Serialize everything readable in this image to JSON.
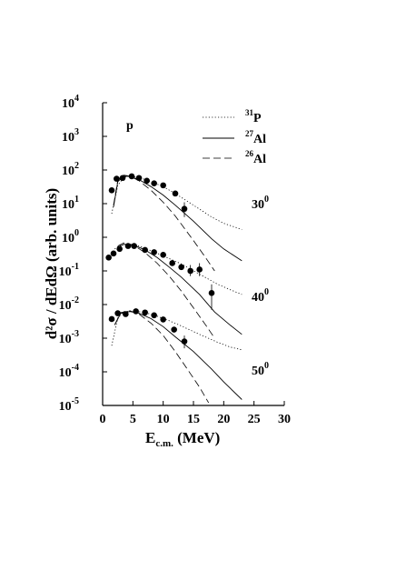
{
  "chart_data": {
    "type": "scatter",
    "panel_label": "p",
    "x_axis": {
      "label_main": "E",
      "label_sub": "c.m.",
      "label_unit": " (MeV)",
      "min": 0,
      "max": 30,
      "ticks": [
        "0",
        "5",
        "10",
        "15",
        "20",
        "25",
        "30"
      ]
    },
    "y_axis": {
      "label": "d²σ / dEdΩ  (arb. units)",
      "scale": "log",
      "min": 1e-05,
      "max": 10000.0,
      "ticks": [
        {
          "base": "10",
          "exp": "4"
        },
        {
          "base": "10",
          "exp": "3"
        },
        {
          "base": "10",
          "exp": "2"
        },
        {
          "base": "10",
          "exp": "1"
        },
        {
          "base": "10",
          "exp": "0"
        },
        {
          "base": "10",
          "exp": "-1"
        },
        {
          "base": "10",
          "exp": "-2"
        },
        {
          "base": "10",
          "exp": "-3"
        },
        {
          "base": "10",
          "exp": "-4"
        },
        {
          "base": "10",
          "exp": "-5"
        }
      ]
    },
    "legend": {
      "placement": "top-right",
      "entries": [
        {
          "mass": "31",
          "element": "P",
          "style": "dotted"
        },
        {
          "mass": "27",
          "element": "Al",
          "style": "solid"
        },
        {
          "mass": "26",
          "element": "Al",
          "style": "dashed"
        }
      ]
    },
    "angle_labels": [
      {
        "value": "30",
        "sup": "0"
      },
      {
        "value": "40",
        "sup": "0"
      },
      {
        "value": "50",
        "sup": "0"
      }
    ],
    "groups": [
      {
        "angle": "30",
        "data": [
          {
            "x": 1.5,
            "y": 25,
            "err_lo": 0,
            "err_hi": 0
          },
          {
            "x": 2.3,
            "y": 55,
            "err_lo": 0,
            "err_hi": 0
          },
          {
            "x": 3.3,
            "y": 58,
            "err_lo": 0,
            "err_hi": 0
          },
          {
            "x": 4.8,
            "y": 65,
            "err_lo": 0,
            "err_hi": 0
          },
          {
            "x": 6.0,
            "y": 58,
            "err_lo": 0,
            "err_hi": 0
          },
          {
            "x": 7.3,
            "y": 48,
            "err_lo": 0,
            "err_hi": 0
          },
          {
            "x": 8.5,
            "y": 40,
            "err_lo": 0,
            "err_hi": 0
          },
          {
            "x": 10.0,
            "y": 35,
            "err_lo": 0,
            "err_hi": 0
          },
          {
            "x": 12.0,
            "y": 20,
            "err_lo": 0,
            "err_hi": 0
          },
          {
            "x": 13.5,
            "y": 7,
            "err_lo": 3,
            "err_hi": 4
          }
        ],
        "curves": [
          {
            "style": "dotted",
            "points": [
              [
                1.5,
                5
              ],
              [
                2.5,
                35
              ],
              [
                3.5,
                60
              ],
              [
                4.5,
                66
              ],
              [
                6,
                60
              ],
              [
                8,
                45
              ],
              [
                10,
                32
              ],
              [
                12,
                20
              ],
              [
                15,
                9
              ],
              [
                18,
                4
              ],
              [
                20,
                2.6
              ],
              [
                23,
                1.7
              ]
            ]
          },
          {
            "style": "solid",
            "points": [
              [
                1.8,
                8
              ],
              [
                2.5,
                45
              ],
              [
                3.5,
                66
              ],
              [
                4.5,
                64
              ],
              [
                6,
                52
              ],
              [
                8,
                32
              ],
              [
                10,
                18
              ],
              [
                12,
                9
              ],
              [
                15,
                3
              ],
              [
                18,
                0.9
              ],
              [
                20,
                0.45
              ],
              [
                23,
                0.2
              ]
            ]
          },
          {
            "style": "dashed",
            "points": [
              [
                1.8,
                9
              ],
              [
                2.5,
                50
              ],
              [
                3.5,
                70
              ],
              [
                4.5,
                66
              ],
              [
                6,
                48
              ],
              [
                8,
                25
              ],
              [
                10,
                11
              ],
              [
                12,
                4.3
              ],
              [
                15,
                0.8
              ],
              [
                17,
                0.25
              ],
              [
                18.5,
                0.1
              ]
            ]
          }
        ]
      },
      {
        "angle": "40",
        "data": [
          {
            "x": 1.0,
            "y": 0.25,
            "err_lo": 0,
            "err_hi": 0
          },
          {
            "x": 1.8,
            "y": 0.33,
            "err_lo": 0,
            "err_hi": 0
          },
          {
            "x": 2.8,
            "y": 0.45,
            "err_lo": 0,
            "err_hi": 0
          },
          {
            "x": 4.2,
            "y": 0.55,
            "err_lo": 0,
            "err_hi": 0
          },
          {
            "x": 5.2,
            "y": 0.55,
            "err_lo": 0,
            "err_hi": 0
          },
          {
            "x": 7.0,
            "y": 0.42,
            "err_lo": 0,
            "err_hi": 0
          },
          {
            "x": 8.5,
            "y": 0.36,
            "err_lo": 0,
            "err_hi": 0
          },
          {
            "x": 10.0,
            "y": 0.3,
            "err_lo": 0,
            "err_hi": 0
          },
          {
            "x": 11.5,
            "y": 0.17,
            "err_lo": 0,
            "err_hi": 0
          },
          {
            "x": 13.0,
            "y": 0.13,
            "err_lo": 0,
            "err_hi": 0
          },
          {
            "x": 14.5,
            "y": 0.1,
            "err_lo": 0.03,
            "err_hi": 0.05
          },
          {
            "x": 16.0,
            "y": 0.11,
            "err_lo": 0.04,
            "err_hi": 0.06
          },
          {
            "x": 18.0,
            "y": 0.022,
            "err_lo": 0.015,
            "err_hi": 0.018
          }
        ],
        "curves": [
          {
            "style": "dotted",
            "points": [
              [
                2,
                0.45
              ],
              [
                3,
                0.6
              ],
              [
                4.5,
                0.62
              ],
              [
                6,
                0.55
              ],
              [
                8,
                0.4
              ],
              [
                10,
                0.28
              ],
              [
                13,
                0.16
              ],
              [
                16,
                0.08
              ],
              [
                19,
                0.04
              ],
              [
                21,
                0.028
              ],
              [
                23,
                0.02
              ]
            ]
          },
          {
            "style": "solid",
            "points": [
              [
                2.5,
                0.5
              ],
              [
                3.5,
                0.62
              ],
              [
                5,
                0.6
              ],
              [
                7,
                0.42
              ],
              [
                9,
                0.25
              ],
              [
                11,
                0.13
              ],
              [
                13,
                0.065
              ],
              [
                16,
                0.02
              ],
              [
                18.5,
                0.006
              ],
              [
                21,
                0.0025
              ],
              [
                23,
                0.0013
              ]
            ]
          },
          {
            "style": "dashed",
            "points": [
              [
                2.5,
                0.55
              ],
              [
                3.5,
                0.68
              ],
              [
                5,
                0.6
              ],
              [
                7,
                0.35
              ],
              [
                9,
                0.17
              ],
              [
                11,
                0.07
              ],
              [
                13,
                0.025
              ],
              [
                15,
                0.008
              ],
              [
                17,
                0.0025
              ],
              [
                18.5,
                0.001
              ]
            ]
          }
        ]
      },
      {
        "angle": "50",
        "data": [
          {
            "x": 1.5,
            "y": 0.0037,
            "err_lo": 0,
            "err_hi": 0
          },
          {
            "x": 2.5,
            "y": 0.0055,
            "err_lo": 0,
            "err_hi": 0
          },
          {
            "x": 3.8,
            "y": 0.0052,
            "err_lo": 0,
            "err_hi": 0
          },
          {
            "x": 5.5,
            "y": 0.0063,
            "err_lo": 0,
            "err_hi": 0
          },
          {
            "x": 7.0,
            "y": 0.0058,
            "err_lo": 0,
            "err_hi": 0
          },
          {
            "x": 8.5,
            "y": 0.0048,
            "err_lo": 0,
            "err_hi": 0
          },
          {
            "x": 10.0,
            "y": 0.0036,
            "err_lo": 0,
            "err_hi": 0
          },
          {
            "x": 11.8,
            "y": 0.0018,
            "err_lo": 0,
            "err_hi": 0
          },
          {
            "x": 13.5,
            "y": 0.0008,
            "err_lo": 0.0003,
            "err_hi": 0.0004
          }
        ],
        "curves": [
          {
            "style": "dotted",
            "points": [
              [
                1.5,
                0.0006
              ],
              [
                2.5,
                0.004
              ],
              [
                3.5,
                0.0062
              ],
              [
                5,
                0.0065
              ],
              [
                7,
                0.0058
              ],
              [
                9,
                0.0045
              ],
              [
                11,
                0.0033
              ],
              [
                13,
                0.0023
              ],
              [
                16,
                0.0013
              ],
              [
                19,
                0.00075
              ],
              [
                21,
                0.00055
              ],
              [
                23,
                0.00045
              ]
            ]
          },
          {
            "style": "solid",
            "points": [
              [
                2,
                0.0025
              ],
              [
                3,
                0.0055
              ],
              [
                4.5,
                0.0062
              ],
              [
                6,
                0.0055
              ],
              [
                8,
                0.0038
              ],
              [
                10,
                0.0022
              ],
              [
                12,
                0.0011
              ],
              [
                15,
                0.0004
              ],
              [
                18,
                0.00012
              ],
              [
                20,
                5e-05
              ],
              [
                23,
                1.5e-05
              ]
            ]
          },
          {
            "style": "dashed",
            "points": [
              [
                2,
                0.0025
              ],
              [
                3,
                0.0058
              ],
              [
                4.5,
                0.0065
              ],
              [
                6,
                0.0052
              ],
              [
                8,
                0.0028
              ],
              [
                10,
                0.0012
              ],
              [
                12,
                0.0004
              ],
              [
                14,
                0.00012
              ],
              [
                16,
                3.5e-05
              ],
              [
                17.5,
                1.2e-05
              ]
            ]
          }
        ]
      }
    ]
  }
}
